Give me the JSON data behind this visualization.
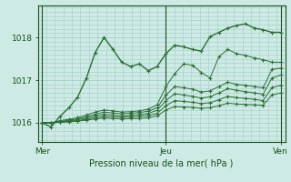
{
  "bg_color": "#ceeae4",
  "grid_color": "#aad4cc",
  "line_color": "#2d6e3a",
  "dark_line_color": "#1a5020",
  "title": "Pression niveau de la mer( hPa )",
  "xtick_labels": [
    "Mer",
    "Jeu",
    "Ven"
  ],
  "xtick_positions": [
    0,
    14,
    27
  ],
  "ytick_labels": [
    "1016",
    "1017",
    "1018"
  ],
  "ytick_positions": [
    1016,
    1017,
    1018
  ],
  "ylim": [
    1015.55,
    1018.75
  ],
  "xlim": [
    -0.5,
    27.5
  ],
  "series": [
    [
      1016.0,
      1015.9,
      1016.15,
      1016.35,
      1016.6,
      1017.05,
      1017.65,
      1018.0,
      1017.72,
      1017.42,
      1017.32,
      1017.38,
      1017.22,
      1017.32,
      1017.62,
      1017.82,
      1017.78,
      1017.72,
      1017.68,
      1018.02,
      1018.12,
      1018.22,
      1018.28,
      1018.32,
      1018.22,
      1018.18,
      1018.12,
      1018.12
    ],
    [
      1016.0,
      1016.0,
      1016.05,
      1016.08,
      1016.12,
      1016.18,
      1016.25,
      1016.3,
      1016.28,
      1016.25,
      1016.26,
      1016.28,
      1016.32,
      1016.42,
      1016.85,
      1017.15,
      1017.38,
      1017.35,
      1017.18,
      1017.05,
      1017.55,
      1017.72,
      1017.62,
      1017.58,
      1017.52,
      1017.48,
      1017.42,
      1017.42
    ],
    [
      1016.0,
      1016.0,
      1016.03,
      1016.06,
      1016.09,
      1016.14,
      1016.2,
      1016.25,
      1016.23,
      1016.21,
      1016.22,
      1016.24,
      1016.27,
      1016.35,
      1016.65,
      1016.85,
      1016.82,
      1016.79,
      1016.72,
      1016.75,
      1016.85,
      1016.95,
      1016.9,
      1016.88,
      1016.85,
      1016.82,
      1017.25,
      1017.28
    ],
    [
      1016.0,
      1016.0,
      1016.02,
      1016.04,
      1016.07,
      1016.11,
      1016.16,
      1016.2,
      1016.18,
      1016.16,
      1016.17,
      1016.19,
      1016.22,
      1016.29,
      1016.52,
      1016.68,
      1016.65,
      1016.62,
      1016.58,
      1016.61,
      1016.7,
      1016.8,
      1016.76,
      1016.73,
      1016.7,
      1016.67,
      1017.05,
      1017.12
    ],
    [
      1016.0,
      1016.0,
      1016.02,
      1016.03,
      1016.05,
      1016.08,
      1016.12,
      1016.15,
      1016.14,
      1016.13,
      1016.135,
      1016.15,
      1016.17,
      1016.22,
      1016.4,
      1016.52,
      1016.5,
      1016.48,
      1016.45,
      1016.47,
      1016.54,
      1016.62,
      1016.59,
      1016.57,
      1016.55,
      1016.52,
      1016.82,
      1016.88
    ],
    [
      1016.0,
      1016.0,
      1016.01,
      1016.02,
      1016.04,
      1016.06,
      1016.09,
      1016.11,
      1016.1,
      1016.09,
      1016.095,
      1016.1,
      1016.12,
      1016.16,
      1016.3,
      1016.38,
      1016.37,
      1016.36,
      1016.34,
      1016.35,
      1016.4,
      1016.46,
      1016.44,
      1016.43,
      1016.42,
      1016.41,
      1016.65,
      1016.7
    ]
  ]
}
